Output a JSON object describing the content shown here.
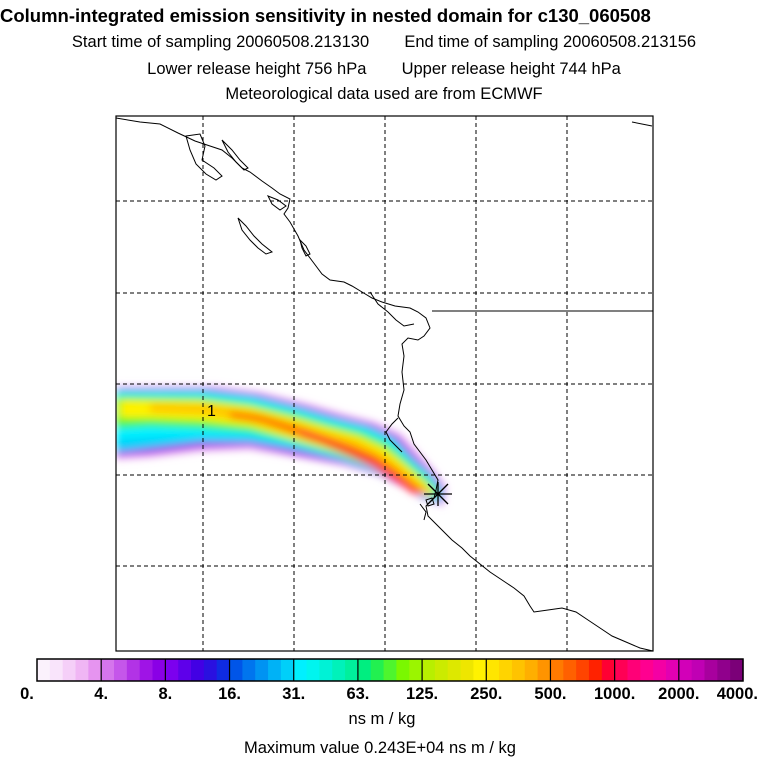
{
  "header": {
    "title": "Column-integrated emission sensitivity in nested domain for c130_060508",
    "start_label": "Start time of sampling",
    "start_value": "20060508.213130",
    "end_label": "End time of sampling",
    "end_value": "20060508.213156",
    "lower_label": "Lower release height",
    "lower_value": "756 hPa",
    "upper_label": "Upper release height",
    "upper_value": "744 hPa",
    "met_note": "Meteorological data used are from ECMWF"
  },
  "chart_data": {
    "type": "heatmap",
    "title": "Column-integrated emission sensitivity in nested domain for c130_060508",
    "colorbar": {
      "tick_labels": [
        "0.",
        "4.",
        "8.",
        "16.",
        "31.",
        "63.",
        "125.",
        "250.",
        "500.",
        "1000.",
        "2000.",
        "4000."
      ],
      "colors": [
        [
          "#fbf2fc",
          "#f9e4fb",
          "#f5cff8",
          "#f0b6f4",
          "#e694f0"
        ],
        [
          "#d575ec",
          "#c556ea",
          "#b233e6",
          "#9f14e6",
          "#8a00e6"
        ],
        [
          "#7c00ee",
          "#5e00ea",
          "#4200e4",
          "#2a10e0",
          "#0f2be2"
        ],
        [
          "#0055e8",
          "#0075ee",
          "#0093f2",
          "#00b2f6",
          "#00cff9"
        ],
        [
          "#00f0ff",
          "#00f5ef",
          "#00f2d6",
          "#00f2ba",
          "#00f09c"
        ],
        [
          "#00ee80",
          "#22f050",
          "#4ef52e",
          "#7af800",
          "#9bf500"
        ],
        [
          "#b8ef00",
          "#cbeb00",
          "#dde800",
          "#eee600",
          "#fff200"
        ],
        [
          "#ffe600",
          "#ffd400",
          "#ffc300",
          "#ffaf00",
          "#ff9400"
        ],
        [
          "#ff7a00",
          "#ff6000",
          "#ff4400",
          "#ff2200",
          "#ff0033"
        ],
        [
          "#ff0055",
          "#ff0077",
          "#ff0090",
          "#f400a4",
          "#e200b2"
        ],
        [
          "#d200b8",
          "#c000b4",
          "#a8009e",
          "#90008c",
          "#7b0078"
        ]
      ],
      "units": "ns m / kg"
    },
    "max_value_label": "Maximum value",
    "max_value": "0.243E+04 ns m / kg",
    "plume_marker_label": "1",
    "release_marker": "star",
    "grid": "dashed"
  }
}
